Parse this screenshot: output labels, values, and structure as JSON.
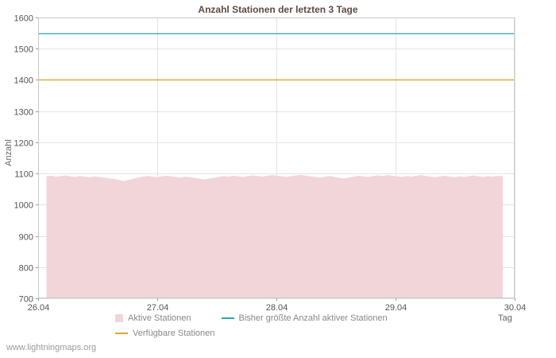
{
  "page": {
    "footer_link": "www.lightningmaps.org"
  },
  "chart_data": {
    "type": "area",
    "title": "Anzahl Stationen der letzten 3 Tage",
    "xlabel": "Tag",
    "ylabel": "Anzahl",
    "xlim": [
      26.0,
      30.0
    ],
    "ylim": [
      700,
      1600
    ],
    "grid": true,
    "legend_position": "bottom",
    "yticks": [
      700,
      800,
      900,
      1000,
      1100,
      1200,
      1300,
      1400,
      1500,
      1600
    ],
    "xticks": [
      {
        "pos": 26.0,
        "label": "26.04"
      },
      {
        "pos": 27.0,
        "label": "27.04"
      },
      {
        "pos": 28.0,
        "label": "28.04"
      },
      {
        "pos": 29.0,
        "label": "29.04"
      },
      {
        "pos": 30.0,
        "label": "30.04"
      }
    ],
    "series": [
      {
        "name": "Aktive Stationen",
        "type": "area",
        "color": "#f2d5d8",
        "x_start": 26.07,
        "x_end": 29.9,
        "values": [
          1091,
          1093,
          1090,
          1092,
          1094,
          1091,
          1089,
          1092,
          1090,
          1088,
          1091,
          1089,
          1087,
          1085,
          1083,
          1080,
          1076,
          1079,
          1083,
          1087,
          1090,
          1092,
          1090,
          1088,
          1091,
          1093,
          1091,
          1089,
          1087,
          1090,
          1088,
          1086,
          1083,
          1081,
          1084,
          1087,
          1090,
          1092,
          1090,
          1093,
          1091,
          1089,
          1092,
          1094,
          1092,
          1090,
          1093,
          1095,
          1093,
          1091,
          1089,
          1092,
          1094,
          1096,
          1093,
          1091,
          1089,
          1087,
          1090,
          1092,
          1089,
          1086,
          1084,
          1087,
          1090,
          1093,
          1091,
          1089,
          1092,
          1094,
          1092,
          1095,
          1093,
          1091,
          1089,
          1092,
          1090,
          1093,
          1095,
          1092,
          1090,
          1088,
          1091,
          1093,
          1090,
          1088,
          1091,
          1089,
          1092,
          1094,
          1091,
          1089,
          1092,
          1090,
          1093,
          1091
        ]
      },
      {
        "name": "Bisher größte Anzahl aktiver Stationen",
        "type": "line",
        "color": "#2fa4b4",
        "value": 1548
      },
      {
        "name": "Verfügbare Stationen",
        "type": "line",
        "color": "#d9a62c",
        "value": 1400
      }
    ]
  }
}
